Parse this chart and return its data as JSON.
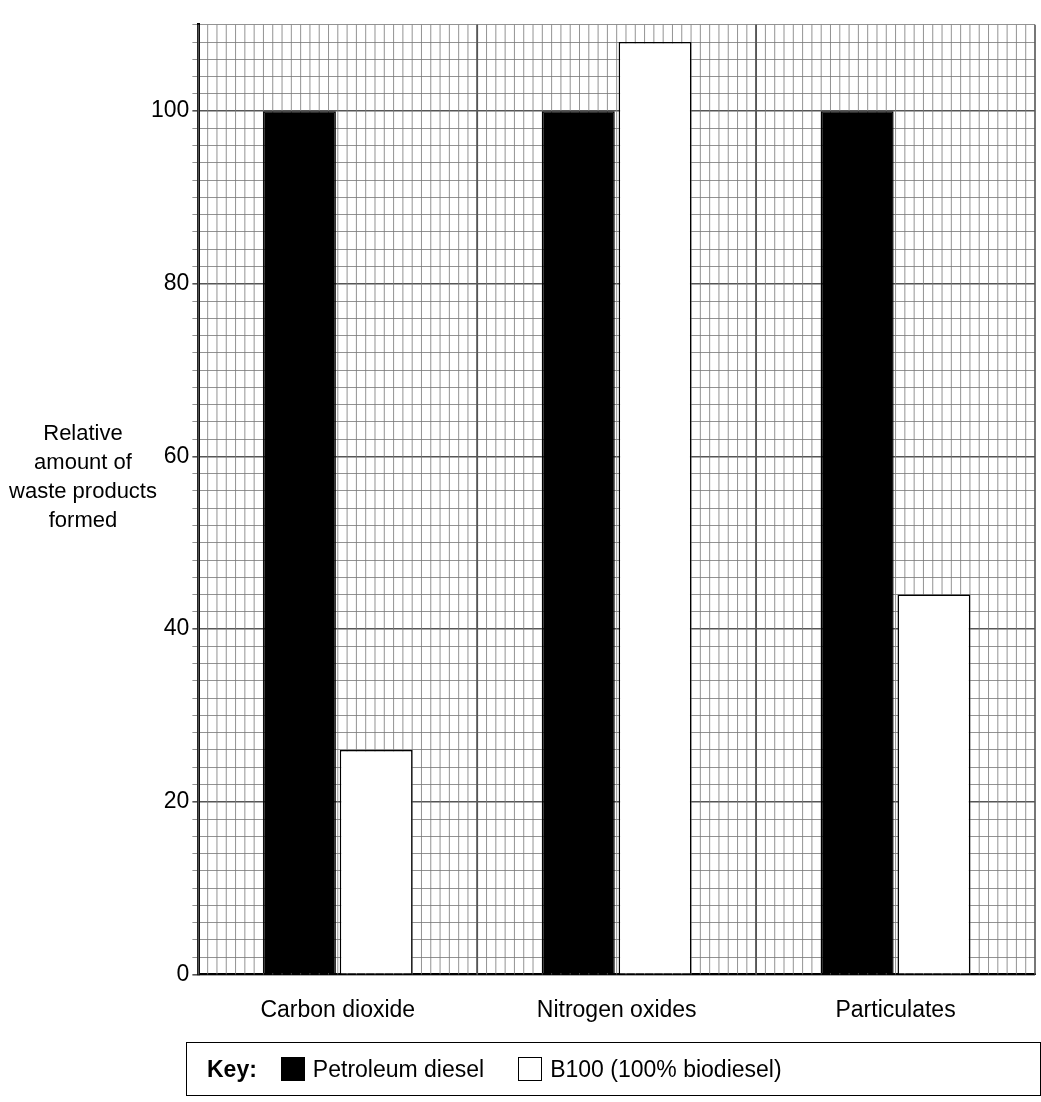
{
  "chart_data": {
    "type": "bar",
    "ylabel": "Relative amount of waste products formed",
    "legend_title": "Key:",
    "categories": [
      "Carbon dioxide",
      "Nitrogen oxides",
      "Particulates"
    ],
    "series": [
      {
        "name": "Petroleum diesel",
        "color": "#000000",
        "values": [
          100,
          100,
          100
        ]
      },
      {
        "name": "B100 (100% biodiesel)",
        "color": "#ffffff",
        "values": [
          26,
          108,
          44
        ]
      }
    ],
    "ylim": [
      0,
      110
    ],
    "yticks": [
      0,
      {
        "value": 2,
        "label": null
      },
      {
        "value": 4,
        "label": null
      },
      {
        "value": 6,
        "label": null
      },
      {
        "value": 8,
        "label": null
      },
      {
        "value": 10,
        "label": null
      },
      {
        "value": 12,
        "label": null
      },
      {
        "value": 14,
        "label": null
      },
      {
        "value": 16,
        "label": null
      },
      {
        "value": 18,
        "label": null
      },
      20,
      {
        "value": 22,
        "label": null
      },
      {
        "value": 24,
        "label": null
      },
      {
        "value": 26,
        "label": null
      },
      {
        "value": 28,
        "label": null
      },
      {
        "value": 30,
        "label": null
      },
      {
        "value": 32,
        "label": null
      },
      {
        "value": 34,
        "label": null
      },
      {
        "value": 36,
        "label": null
      },
      {
        "value": 38,
        "label": null
      },
      40,
      {
        "value": 42,
        "label": null
      },
      {
        "value": 44,
        "label": null
      },
      {
        "value": 46,
        "label": null
      },
      {
        "value": 48,
        "label": null
      },
      {
        "value": 50,
        "label": null
      },
      {
        "value": 52,
        "label": null
      },
      {
        "value": 54,
        "label": null
      },
      {
        "value": 56,
        "label": null
      },
      {
        "value": 58,
        "label": null
      },
      60,
      {
        "value": 62,
        "label": null
      },
      {
        "value": 64,
        "label": null
      },
      {
        "value": 66,
        "label": null
      },
      {
        "value": 68,
        "label": null
      },
      {
        "value": 70,
        "label": null
      },
      {
        "value": 72,
        "label": null
      },
      {
        "value": 74,
        "label": null
      },
      {
        "value": 76,
        "label": null
      },
      {
        "value": 78,
        "label": null
      },
      80,
      {
        "value": 82,
        "label": null
      },
      {
        "value": 84,
        "label": null
      },
      {
        "value": 86,
        "label": null
      },
      {
        "value": 88,
        "label": null
      },
      {
        "value": 90,
        "label": null
      },
      {
        "value": 92,
        "label": null
      },
      {
        "value": 94,
        "label": null
      },
      {
        "value": 96,
        "label": null
      },
      {
        "value": 98,
        "label": null
      },
      100,
      {
        "value": 102,
        "label": null
      },
      {
        "value": 104,
        "label": null
      },
      {
        "value": 106,
        "label": null
      },
      {
        "value": 108,
        "label": null
      },
      {
        "value": 110,
        "label": null
      }
    ],
    "grid": true,
    "legend": "bottom"
  }
}
